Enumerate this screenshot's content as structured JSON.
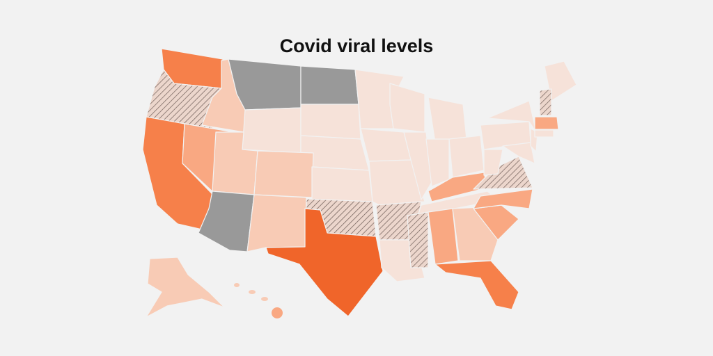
{
  "title": "Covid viral levels"
}
